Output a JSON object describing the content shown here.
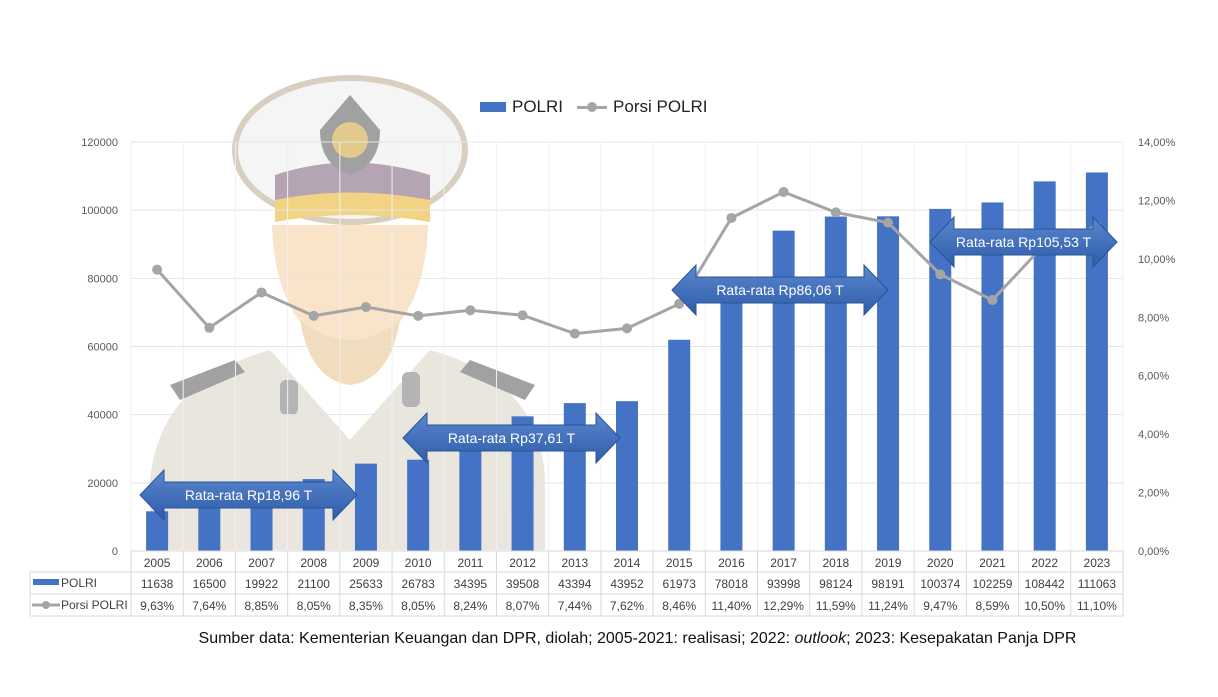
{
  "chart_data": {
    "type": "bar+line",
    "categories": [
      "2005",
      "2006",
      "2007",
      "2008",
      "2009",
      "2010",
      "2011",
      "2012",
      "2013",
      "2014",
      "2015",
      "2016",
      "2017",
      "2018",
      "2019",
      "2020",
      "2021",
      "2022",
      "2023"
    ],
    "series": [
      {
        "name": "POLRI",
        "type": "bar",
        "axis": "left",
        "color": "#4472c4",
        "values": [
          11638,
          16500,
          19922,
          21100,
          25633,
          26783,
          34395,
          39508,
          43394,
          43952,
          61973,
          78018,
          93998,
          98124,
          98191,
          100374,
          102259,
          108442,
          111063
        ],
        "labels": [
          "11638",
          "16500",
          "19922",
          "21100",
          "25633",
          "26783",
          "34395",
          "39508",
          "43394",
          "43952",
          "61973",
          "78018",
          "93998",
          "98124",
          "98191",
          "100374",
          "102259",
          "108442",
          "111063"
        ]
      },
      {
        "name": "Porsi POLRI",
        "type": "line",
        "axis": "right",
        "color": "#a5a5a5",
        "values": [
          9.63,
          7.64,
          8.85,
          8.05,
          8.35,
          8.05,
          8.24,
          8.07,
          7.44,
          7.62,
          8.46,
          11.4,
          12.29,
          11.59,
          11.24,
          9.47,
          8.59,
          10.5,
          11.1
        ],
        "labels": [
          "9,63%",
          "7,64%",
          "8,85%",
          "8,05%",
          "8,35%",
          "8,05%",
          "8,24%",
          "8,07%",
          "7,44%",
          "7,62%",
          "8,46%",
          "11,40%",
          "12,29%",
          "11,59%",
          "11,24%",
          "9,47%",
          "8,59%",
          "10,50%",
          "11,10%"
        ]
      }
    ],
    "left_axis": {
      "range": [
        0,
        120000
      ],
      "ticks": [
        "0",
        "20000",
        "40000",
        "60000",
        "80000",
        "100000",
        "120000"
      ]
    },
    "right_axis": {
      "range": [
        0,
        14
      ],
      "ticks": [
        "0,00%",
        "2,00%",
        "4,00%",
        "6,00%",
        "8,00%",
        "10,00%",
        "12,00%",
        "14,00%"
      ]
    },
    "legend": {
      "position": "top",
      "items": [
        "POLRI",
        "Porsi POLRI"
      ]
    },
    "grid": true,
    "data_table": true,
    "annotations": [
      "Rata-rata Rp18,96 T",
      "Rata-rata Rp37,61 T",
      "Rata-rata Rp86,06 T",
      "Rata-rata Rp105,53 T"
    ]
  },
  "caption": {
    "pre": "Sumber data: Kementerian Keuangan dan DPR, diolah; 2005-2021: realisasi; 2022: ",
    "italic": "outlook",
    "post": "; 2023: Kesepakatan Panja DPR"
  }
}
